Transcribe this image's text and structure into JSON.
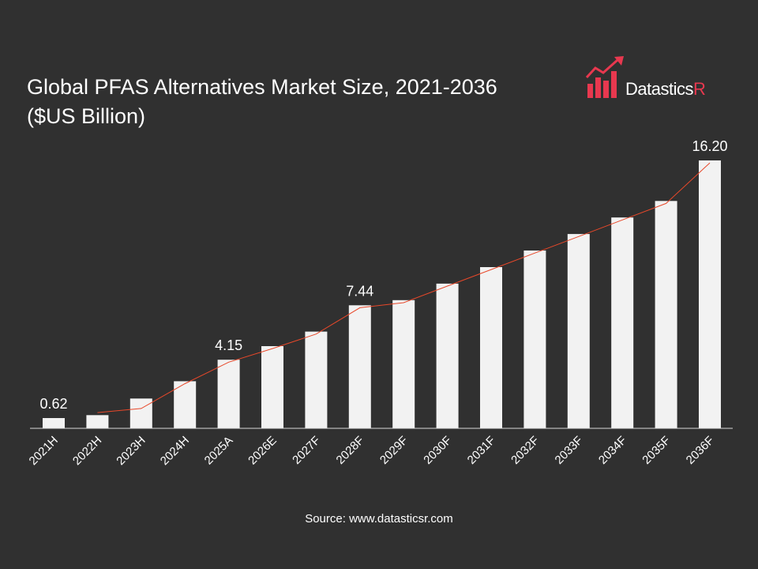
{
  "brand": {
    "name_main": "Datastics",
    "name_accent": "R",
    "accent_color": "#e8384f"
  },
  "source": "Source: www.datasticsr.com",
  "chart_data": {
    "type": "bar",
    "title_line1": "Global PFAS Alternatives Market Size, 2021-2036",
    "title_line2": "($US Billion)",
    "categories": [
      "2021H",
      "2022H",
      "2023H",
      "2024H",
      "2025A",
      "2026E",
      "2027F",
      "2028F",
      "2029F",
      "2030F",
      "2031F",
      "2032F",
      "2033F",
      "2034F",
      "2035F",
      "2036F"
    ],
    "values": [
      0.62,
      0.8,
      1.8,
      2.85,
      4.15,
      4.97,
      5.85,
      7.44,
      7.75,
      8.75,
      9.75,
      10.75,
      11.75,
      12.75,
      13.75,
      16.2
    ],
    "data_labels": {
      "0": "0.62",
      "4": "4.15",
      "7": "7.44",
      "15": "16.20"
    },
    "ylim": [
      0,
      16.2
    ],
    "bar_color": "#f2f2f2",
    "trendline_color": "#e8482a",
    "trendline": true,
    "grid": false,
    "legend": "none"
  }
}
